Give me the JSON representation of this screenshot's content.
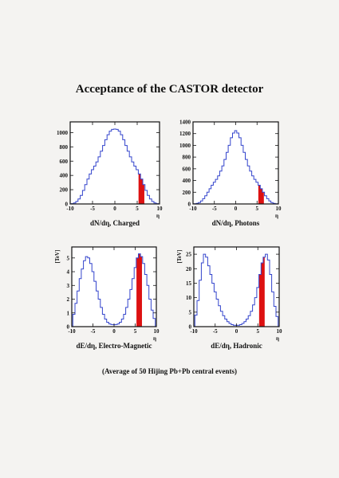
{
  "page": {
    "title": "Acceptance of the CASTOR detector",
    "footnote": "(Average of 50 Hijing Pb+Pb central events)"
  },
  "colors": {
    "curve": "#3344cc",
    "acceptance": "#dd1111",
    "axis": "#111111"
  },
  "chart_data": [
    {
      "type": "line",
      "title": "dN/dη, Charged",
      "xlabel": "η",
      "ylabel": "",
      "xlim": [
        -10,
        10
      ],
      "ylim": [
        0,
        1150
      ],
      "xticks": [
        -10,
        -5,
        0,
        5,
        10
      ],
      "yticks": [
        0,
        200,
        400,
        600,
        800,
        1000
      ],
      "x": [
        -9.5,
        -9,
        -8.5,
        -8,
        -7.5,
        -7,
        -6.5,
        -6,
        -5.5,
        -5,
        -4.5,
        -4,
        -3.5,
        -3,
        -2.5,
        -2,
        -1.5,
        -1,
        -0.5,
        0,
        0.5,
        1,
        1.5,
        2,
        2.5,
        3,
        3.5,
        4,
        4.5,
        5,
        5.5,
        6,
        6.5,
        7,
        7.5,
        8,
        8.5,
        9,
        9.5
      ],
      "y": [
        5,
        15,
        35,
        70,
        120,
        190,
        270,
        350,
        420,
        480,
        530,
        590,
        660,
        740,
        820,
        900,
        970,
        1020,
        1045,
        1050,
        1045,
        1020,
        970,
        900,
        820,
        740,
        660,
        590,
        530,
        480,
        420,
        350,
        270,
        190,
        120,
        70,
        35,
        15,
        5
      ],
      "acceptance_range": [
        5.3,
        6.6
      ]
    },
    {
      "type": "line",
      "title": "dN/dη, Photons",
      "xlabel": "η",
      "ylabel": "",
      "xlim": [
        -10,
        10
      ],
      "ylim": [
        0,
        1400
      ],
      "xticks": [
        -10,
        -5,
        0,
        5,
        10
      ],
      "yticks": [
        0,
        200,
        400,
        600,
        800,
        1000,
        1200,
        1400
      ],
      "x": [
        -9.5,
        -9,
        -8.5,
        -8,
        -7.5,
        -7,
        -6.5,
        -6,
        -5.5,
        -5,
        -4.5,
        -4,
        -3.5,
        -3,
        -2.5,
        -2,
        -1.5,
        -1,
        -0.5,
        0,
        0.5,
        1,
        1.5,
        2,
        2.5,
        3,
        3.5,
        4,
        4.5,
        5,
        5.5,
        6,
        6.5,
        7,
        7.5,
        8,
        8.5,
        9,
        9.5
      ],
      "y": [
        3,
        10,
        25,
        50,
        90,
        140,
        200,
        260,
        320,
        370,
        420,
        480,
        560,
        650,
        760,
        880,
        1000,
        1130,
        1210,
        1250,
        1210,
        1130,
        1000,
        880,
        760,
        650,
        560,
        480,
        420,
        370,
        320,
        260,
        200,
        140,
        90,
        50,
        25,
        10,
        3
      ],
      "acceptance_range": [
        5.3,
        6.6
      ]
    },
    {
      "type": "line",
      "title": "dE/dη, Electro-Magnetic",
      "xlabel": "η",
      "ylabel": "[TeV]",
      "xlim": [
        -10,
        10
      ],
      "ylim": [
        0,
        5.8
      ],
      "xticks": [
        -10,
        -5,
        0,
        5,
        10
      ],
      "yticks": [
        0,
        1,
        2,
        3,
        4,
        5
      ],
      "x": [
        -9.5,
        -9,
        -8.5,
        -8,
        -7.5,
        -7,
        -6.5,
        -6,
        -5.5,
        -5,
        -4.5,
        -4,
        -3.5,
        -3,
        -2.5,
        -2,
        -1.5,
        -1,
        -0.5,
        0,
        0.5,
        1,
        1.5,
        2,
        2.5,
        3,
        3.5,
        4,
        4.5,
        5,
        5.5,
        6,
        6.5,
        7,
        7.5,
        8,
        8.5,
        9,
        9.5
      ],
      "y": [
        0.9,
        1.7,
        2.6,
        3.5,
        4.2,
        4.8,
        5.1,
        5.0,
        4.6,
        4.0,
        3.3,
        2.6,
        2.0,
        1.4,
        0.9,
        0.55,
        0.32,
        0.2,
        0.15,
        0.14,
        0.15,
        0.2,
        0.32,
        0.55,
        0.9,
        1.4,
        2.0,
        2.7,
        3.5,
        4.3,
        5.0,
        5.3,
        5.1,
        4.6,
        3.8,
        3.0,
        2.0,
        1.2,
        0.6
      ],
      "acceptance_range": [
        5.3,
        6.6
      ]
    },
    {
      "type": "line",
      "title": "dE/dη, Hadronic",
      "xlabel": "η",
      "ylabel": "[TeV]",
      "xlim": [
        -10,
        10
      ],
      "ylim": [
        0,
        27.5
      ],
      "xticks": [
        -10,
        -5,
        0,
        5,
        10
      ],
      "yticks": [
        0,
        5,
        10,
        15,
        20,
        25
      ],
      "x": [
        -9.5,
        -9,
        -8.5,
        -8,
        -7.5,
        -7,
        -6.5,
        -6,
        -5.5,
        -5,
        -4.5,
        -4,
        -3.5,
        -3,
        -2.5,
        -2,
        -1.5,
        -1,
        -0.5,
        0,
        0.5,
        1,
        1.5,
        2,
        2.5,
        3,
        3.5,
        4,
        4.5,
        5,
        5.5,
        6,
        6.5,
        7,
        7.5,
        8,
        8.5,
        9,
        9.5
      ],
      "y": [
        4,
        9,
        16,
        22,
        25,
        24,
        21,
        18,
        15,
        12,
        9.5,
        7.2,
        5.3,
        3.8,
        2.6,
        1.7,
        1.1,
        0.7,
        0.5,
        0.45,
        0.5,
        0.7,
        1.1,
        1.7,
        2.6,
        3.8,
        5.3,
        7.5,
        10,
        13.5,
        18,
        22,
        24,
        25,
        23,
        18,
        12,
        7,
        3.5
      ],
      "acceptance_range": [
        5.3,
        6.6
      ]
    }
  ]
}
